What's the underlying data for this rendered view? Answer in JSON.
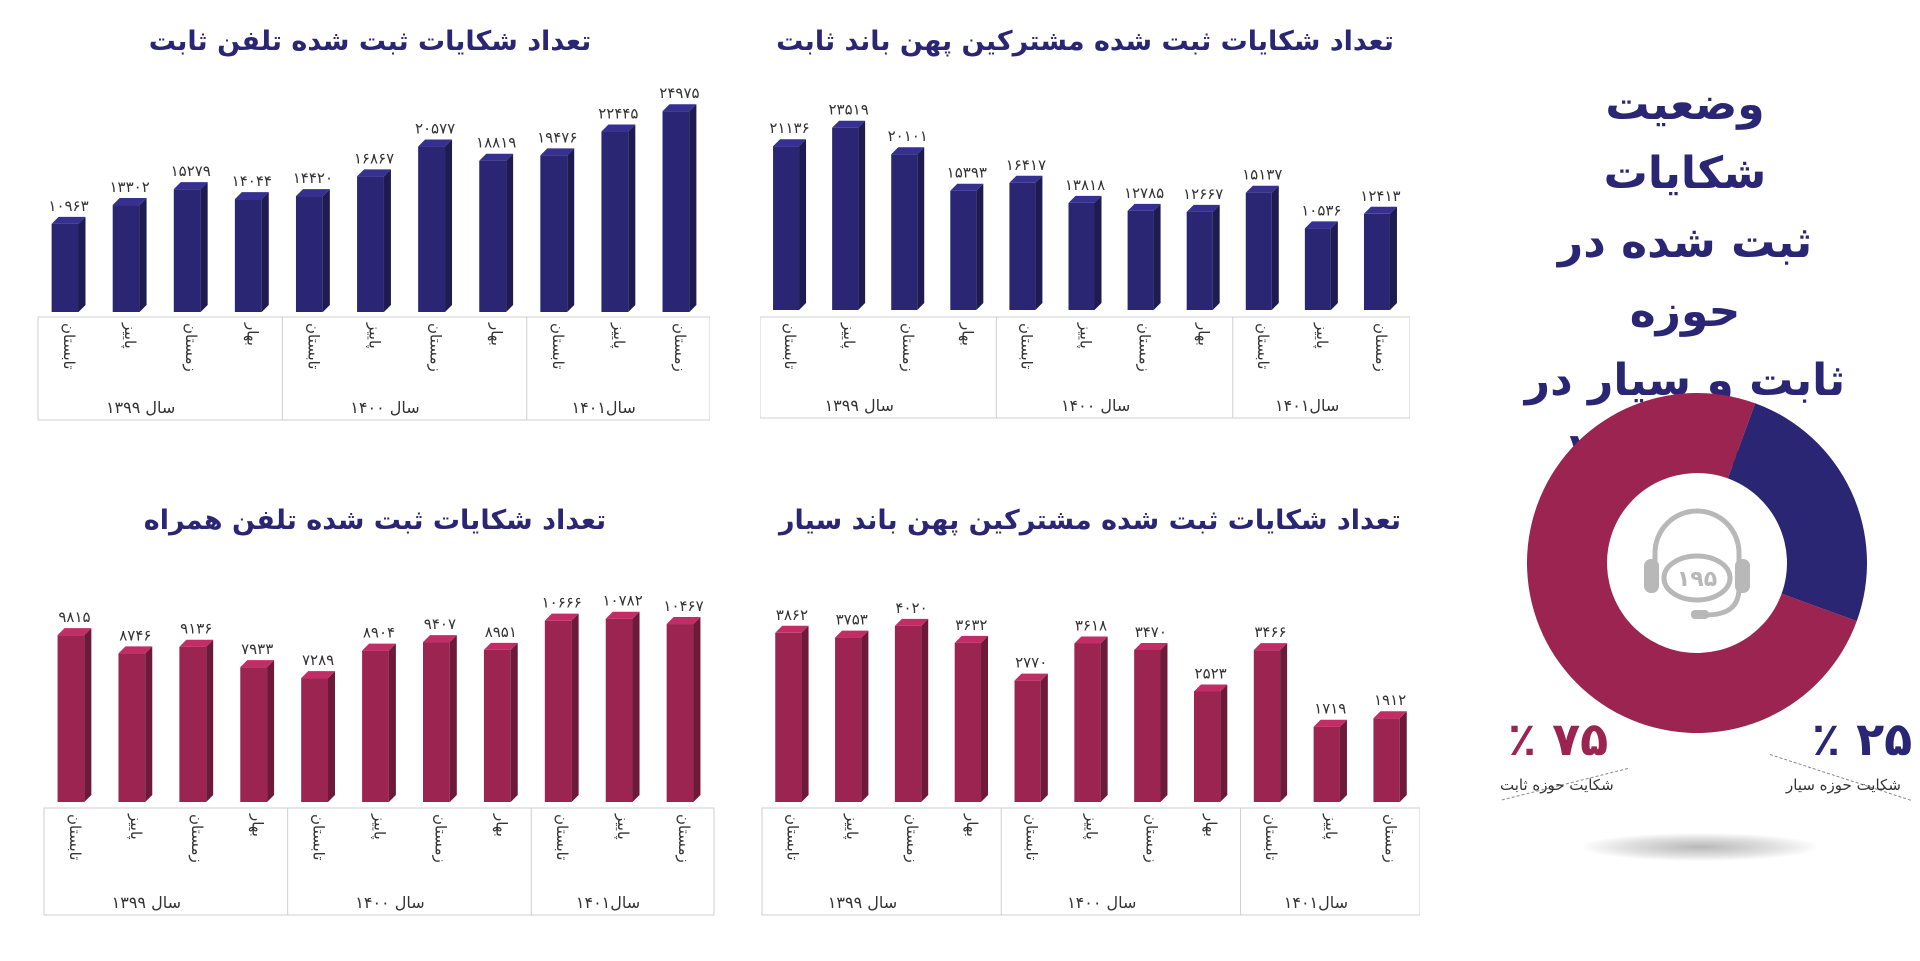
{
  "headline": {
    "line1": "وضعیت شکایات",
    "line2": "ثبت شده در حوزه",
    "line3": "ثابت و سیار در",
    "line4": "سامانه ۱۹۵"
  },
  "colors": {
    "navy": "#2b2673",
    "crimson": "#9b2451",
    "text": "#333333"
  },
  "donut": {
    "center_icon": "headset-icon",
    "center_text": "۱۹۵",
    "slices": [
      {
        "label": "شکایت حوزه سیار",
        "value": 25,
        "display": "٪ ۲۵",
        "color": "#2b2673"
      },
      {
        "label": "شکایت حوزه ثابت",
        "value": 75,
        "display": "٪ ۷۵",
        "color": "#9b2451"
      }
    ]
  },
  "chart_data": [
    {
      "id": "fixed-broadband",
      "type": "bar",
      "title": "تعداد شکایات ثبت شده مشترکین پهن باند ثابت",
      "categories": [
        "تابستان",
        "پاییز",
        "زمستان",
        "بهار",
        "تابستان",
        "پاییز",
        "زمستان",
        "بهار",
        "تابستان",
        "پاییز",
        "زمستان"
      ],
      "values": [
        21136,
        23519,
        20101,
        15393,
        16417,
        13818,
        12785,
        12667,
        15137,
        10536,
        12413
      ],
      "value_labels": [
        "۲۱۱۳۶",
        "۲۳۵۱۹",
        "۲۰۱۰۱",
        "۱۵۳۹۳",
        "۱۶۴۱۷",
        "۱۳۸۱۸",
        "۱۲۷۸۵",
        "۱۲۶۶۷",
        "۱۵۱۳۷",
        "۱۰۵۳۶",
        "۱۲۴۱۳"
      ],
      "groups": [
        {
          "label": "سال ۱۳۹۹",
          "count": 4
        },
        {
          "label": "سال ۱۴۰۰",
          "count": 4
        },
        {
          "label": "سال۱۴۰۱",
          "count": 3
        }
      ],
      "ylim": [
        0,
        24000
      ],
      "color": "#2b2673"
    },
    {
      "id": "fixed-phone",
      "type": "bar",
      "title": "تعداد شکایات ثبت شده تلفن ثابت",
      "categories": [
        "تابستان",
        "پاییز",
        "زمستان",
        "بهار",
        "تابستان",
        "پاییز",
        "زمستان",
        "بهار",
        "تابستان",
        "پاییز",
        "زمستان"
      ],
      "values": [
        10963,
        13302,
        15279,
        14044,
        14420,
        16867,
        20577,
        18819,
        19476,
        22445,
        24975
      ],
      "value_labels": [
        "۱۰۹۶۳",
        "۱۳۳۰۲",
        "۱۵۲۷۹",
        "۱۴۰۴۴",
        "۱۴۴۲۰",
        "۱۶۸۶۷",
        "۲۰۵۷۷",
        "۱۸۸۱۹",
        "۱۹۴۷۶",
        "۲۲۴۴۵",
        "۲۴۹۷۵"
      ],
      "groups": [
        {
          "label": "سال ۱۳۹۹",
          "count": 4
        },
        {
          "label": "سال ۱۴۰۰",
          "count": 4
        },
        {
          "label": "سال۱۴۰۱",
          "count": 3
        }
      ],
      "ylim": [
        0,
        25000
      ],
      "color": "#2b2673"
    },
    {
      "id": "mobile-broadband",
      "type": "bar",
      "title": "تعداد شکایات ثبت شده مشترکین پهن باند سیار",
      "categories": [
        "تابستان",
        "پاییز",
        "زمستان",
        "بهار",
        "تابستان",
        "پاییز",
        "زمستان",
        "بهار",
        "تابستان",
        "پاییز",
        "زمستان"
      ],
      "values": [
        3862,
        3753,
        4020,
        3632,
        2770,
        3618,
        3470,
        2523,
        3466,
        1719,
        1912
      ],
      "value_labels": [
        "۳۸۶۲",
        "۳۷۵۳",
        "۴۰۲۰",
        "۳۶۳۲",
        "۲۷۷۰",
        "۳۶۱۸",
        "۳۴۷۰",
        "۲۵۲۳",
        "۳۴۶۶",
        "۱۷۱۹",
        "۱۹۱۲"
      ],
      "groups": [
        {
          "label": "سال ۱۳۹۹",
          "count": 4
        },
        {
          "label": "سال ۱۴۰۰",
          "count": 4
        },
        {
          "label": "سال۱۴۰۱",
          "count": 3
        }
      ],
      "ylim": [
        0,
        4200
      ],
      "color": "#9b2451"
    },
    {
      "id": "mobile-phone",
      "type": "bar",
      "title": "تعداد شکایات ثبت شده تلفن همراه",
      "categories": [
        "تابستان",
        "پاییز",
        "زمستان",
        "بهار",
        "تابستان",
        "پاییز",
        "زمستان",
        "بهار",
        "تابستان",
        "پاییز",
        "زمستان"
      ],
      "values": [
        9815,
        8746,
        9136,
        7933,
        7289,
        8904,
        9407,
        8951,
        10666,
        10782,
        10467
      ],
      "value_labels": [
        "۹۸۱۵",
        "۸۷۴۶",
        "۹۱۳۶",
        "۷۹۳۳",
        "۷۲۸۹",
        "۸۹۰۴",
        "۹۴۰۷",
        "۸۹۵۱",
        "۱۰۶۶۶",
        "۱۰۷۸۲",
        "۱۰۴۶۷"
      ],
      "groups": [
        {
          "label": "سال ۱۳۹۹",
          "count": 4
        },
        {
          "label": "سال ۱۴۰۰",
          "count": 4
        },
        {
          "label": "سال۱۴۰۱",
          "count": 3
        }
      ],
      "ylim": [
        0,
        11000
      ],
      "color": "#9b2451"
    }
  ]
}
